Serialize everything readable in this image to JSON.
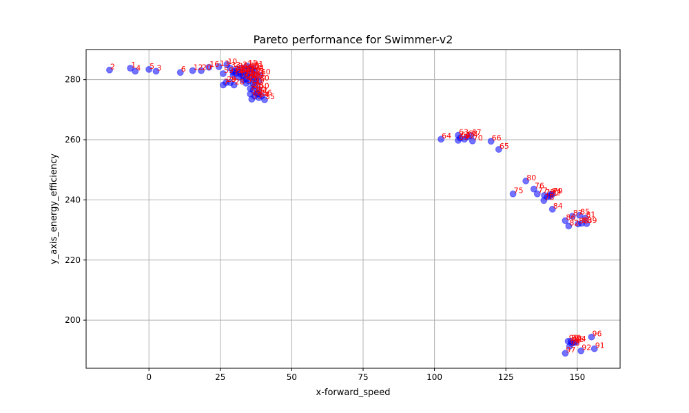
{
  "chart_data": {
    "type": "scatter",
    "title": "Pareto performance for Swimmer-v2",
    "xlabel": "x-forward_speed",
    "ylabel": "y_axis_energy_efficiency",
    "xlim": [
      -22,
      165
    ],
    "ylim": [
      184,
      290
    ],
    "xticks": [
      0,
      25,
      50,
      75,
      100,
      125,
      150
    ],
    "yticks": [
      200,
      220,
      240,
      260,
      280
    ],
    "grid": true,
    "point_color": "#0000ff",
    "point_alpha": 0.55,
    "label_color": "#ff0000",
    "points": [
      {
        "label": "1",
        "x": -6.5,
        "y": 283.8
      },
      {
        "label": "2",
        "x": -13.8,
        "y": 283.2
      },
      {
        "label": "3",
        "x": 2.5,
        "y": 282.8
      },
      {
        "label": "4",
        "x": -4.8,
        "y": 282.8
      },
      {
        "label": "5",
        "x": 0.0,
        "y": 283.4
      },
      {
        "label": "6",
        "x": 11.0,
        "y": 282.4
      },
      {
        "label": "7",
        "x": 26.0,
        "y": 278.2
      },
      {
        "label": "8",
        "x": 28.5,
        "y": 279.0
      },
      {
        "label": "10",
        "x": 27.3,
        "y": 285.0
      },
      {
        "label": "11",
        "x": 30.0,
        "y": 282.8
      },
      {
        "label": "12",
        "x": 15.3,
        "y": 283.0
      },
      {
        "label": "13",
        "x": 24.5,
        "y": 284.3
      },
      {
        "label": "14",
        "x": 29.5,
        "y": 281.5
      },
      {
        "label": "15",
        "x": 34.5,
        "y": 284.5
      },
      {
        "label": "16",
        "x": 21.0,
        "y": 284.1
      },
      {
        "label": "17",
        "x": 31.5,
        "y": 280.8
      },
      {
        "label": "18",
        "x": 36.0,
        "y": 283.4
      },
      {
        "label": "19",
        "x": 35.5,
        "y": 282.2
      },
      {
        "label": "20",
        "x": 18.3,
        "y": 283.0
      },
      {
        "label": "21",
        "x": 37.0,
        "y": 282.9
      },
      {
        "label": "22",
        "x": 31.8,
        "y": 282.5
      },
      {
        "label": "23",
        "x": 33.0,
        "y": 281.2
      },
      {
        "label": "24",
        "x": 34.0,
        "y": 280.2
      },
      {
        "label": "25",
        "x": 36.8,
        "y": 281.8
      },
      {
        "label": "26",
        "x": 35.0,
        "y": 279.5
      },
      {
        "label": "27",
        "x": 36.8,
        "y": 280.5
      },
      {
        "label": "28",
        "x": 29.8,
        "y": 278.2
      },
      {
        "label": "29",
        "x": 27.0,
        "y": 279.0
      },
      {
        "label": "30",
        "x": 38.5,
        "y": 279.5
      },
      {
        "label": "31",
        "x": 36.5,
        "y": 278.6
      },
      {
        "label": "32",
        "x": 34.0,
        "y": 278.8
      },
      {
        "label": "33",
        "x": 28.5,
        "y": 283.8
      },
      {
        "label": "34",
        "x": 29.5,
        "y": 282.5
      },
      {
        "label": "35",
        "x": 30.5,
        "y": 282.1
      },
      {
        "label": "36",
        "x": 31.0,
        "y": 283.5
      },
      {
        "label": "37",
        "x": 32.5,
        "y": 283.9
      },
      {
        "label": "38",
        "x": 33.5,
        "y": 283.0
      },
      {
        "label": "39",
        "x": 33.0,
        "y": 282.2
      },
      {
        "label": "40",
        "x": 35.0,
        "y": 283.6
      },
      {
        "label": "41",
        "x": 36.5,
        "y": 284.0
      },
      {
        "label": "42",
        "x": 34.5,
        "y": 281.6
      },
      {
        "label": "43",
        "x": 32.0,
        "y": 281.8
      },
      {
        "label": "44",
        "x": 35.5,
        "y": 280.8
      },
      {
        "label": "45",
        "x": 37.5,
        "y": 280.0
      },
      {
        "label": "46",
        "x": 33.0,
        "y": 279.8
      },
      {
        "label": "47",
        "x": 37.0,
        "y": 278.0
      },
      {
        "label": "48",
        "x": 35.5,
        "y": 277.0
      },
      {
        "label": "49",
        "x": 36.5,
        "y": 276.5
      },
      {
        "label": "50",
        "x": 38.5,
        "y": 276.8
      },
      {
        "label": "51",
        "x": 38.0,
        "y": 275.5
      },
      {
        "label": "52",
        "x": 37.0,
        "y": 274.5
      },
      {
        "label": "53",
        "x": 36.0,
        "y": 273.5
      },
      {
        "label": "54",
        "x": 38.5,
        "y": 274.0
      },
      {
        "label": "55",
        "x": 40.5,
        "y": 273.3
      },
      {
        "label": "56",
        "x": 39.5,
        "y": 274.6
      },
      {
        "label": "57",
        "x": 38.0,
        "y": 275.2
      },
      {
        "label": "58",
        "x": 35.5,
        "y": 275.2
      },
      {
        "label": "59",
        "x": 26.0,
        "y": 282.0
      },
      {
        "label": "60",
        "x": 39.0,
        "y": 281.5
      },
      {
        "label": "61",
        "x": 109.0,
        "y": 260.6
      },
      {
        "label": "62",
        "x": 110.5,
        "y": 260.2
      },
      {
        "label": "63",
        "x": 108.3,
        "y": 261.5
      },
      {
        "label": "64",
        "x": 102.3,
        "y": 260.2
      },
      {
        "label": "65",
        "x": 122.5,
        "y": 256.8
      },
      {
        "label": "66",
        "x": 119.8,
        "y": 259.5
      },
      {
        "label": "67",
        "x": 112.8,
        "y": 261.4
      },
      {
        "label": "68",
        "x": 111.5,
        "y": 261.0
      },
      {
        "label": "69",
        "x": 108.3,
        "y": 259.8
      },
      {
        "label": "70",
        "x": 113.3,
        "y": 259.6
      },
      {
        "label": "71",
        "x": 139.5,
        "y": 241.0
      },
      {
        "label": "72",
        "x": 140.5,
        "y": 241.3
      },
      {
        "label": "73",
        "x": 138.5,
        "y": 241.5
      },
      {
        "label": "74",
        "x": 140.8,
        "y": 241.8
      },
      {
        "label": "75",
        "x": 127.5,
        "y": 242.0
      },
      {
        "label": "76",
        "x": 134.8,
        "y": 243.6
      },
      {
        "label": "77",
        "x": 136.0,
        "y": 242.0
      },
      {
        "label": "78",
        "x": 138.3,
        "y": 239.8
      },
      {
        "label": "79",
        "x": 141.3,
        "y": 241.9
      },
      {
        "label": "80",
        "x": 132.0,
        "y": 246.3
      },
      {
        "label": "81",
        "x": 152.8,
        "y": 234.0
      },
      {
        "label": "82",
        "x": 147.0,
        "y": 231.3
      },
      {
        "label": "83",
        "x": 151.5,
        "y": 232.2
      },
      {
        "label": "84",
        "x": 141.3,
        "y": 236.9
      },
      {
        "label": "85",
        "x": 150.8,
        "y": 234.9
      },
      {
        "label": "86",
        "x": 145.8,
        "y": 233.1
      },
      {
        "label": "87",
        "x": 148.3,
        "y": 234.6
      },
      {
        "label": "88",
        "x": 150.3,
        "y": 232.0
      },
      {
        "label": "89",
        "x": 153.3,
        "y": 232.1
      },
      {
        "label": "90",
        "x": 147.8,
        "y": 193.0
      },
      {
        "label": "91",
        "x": 156.0,
        "y": 190.5
      },
      {
        "label": "92",
        "x": 151.3,
        "y": 189.8
      },
      {
        "label": "93",
        "x": 148.0,
        "y": 192.3
      },
      {
        "label": "94",
        "x": 149.5,
        "y": 192.7
      },
      {
        "label": "95",
        "x": 148.8,
        "y": 192.5
      },
      {
        "label": "96",
        "x": 155.0,
        "y": 194.4
      },
      {
        "label": "97",
        "x": 145.8,
        "y": 189.0
      },
      {
        "label": "98",
        "x": 147.3,
        "y": 191.3
      },
      {
        "label": "99",
        "x": 146.8,
        "y": 193.0
      }
    ]
  }
}
